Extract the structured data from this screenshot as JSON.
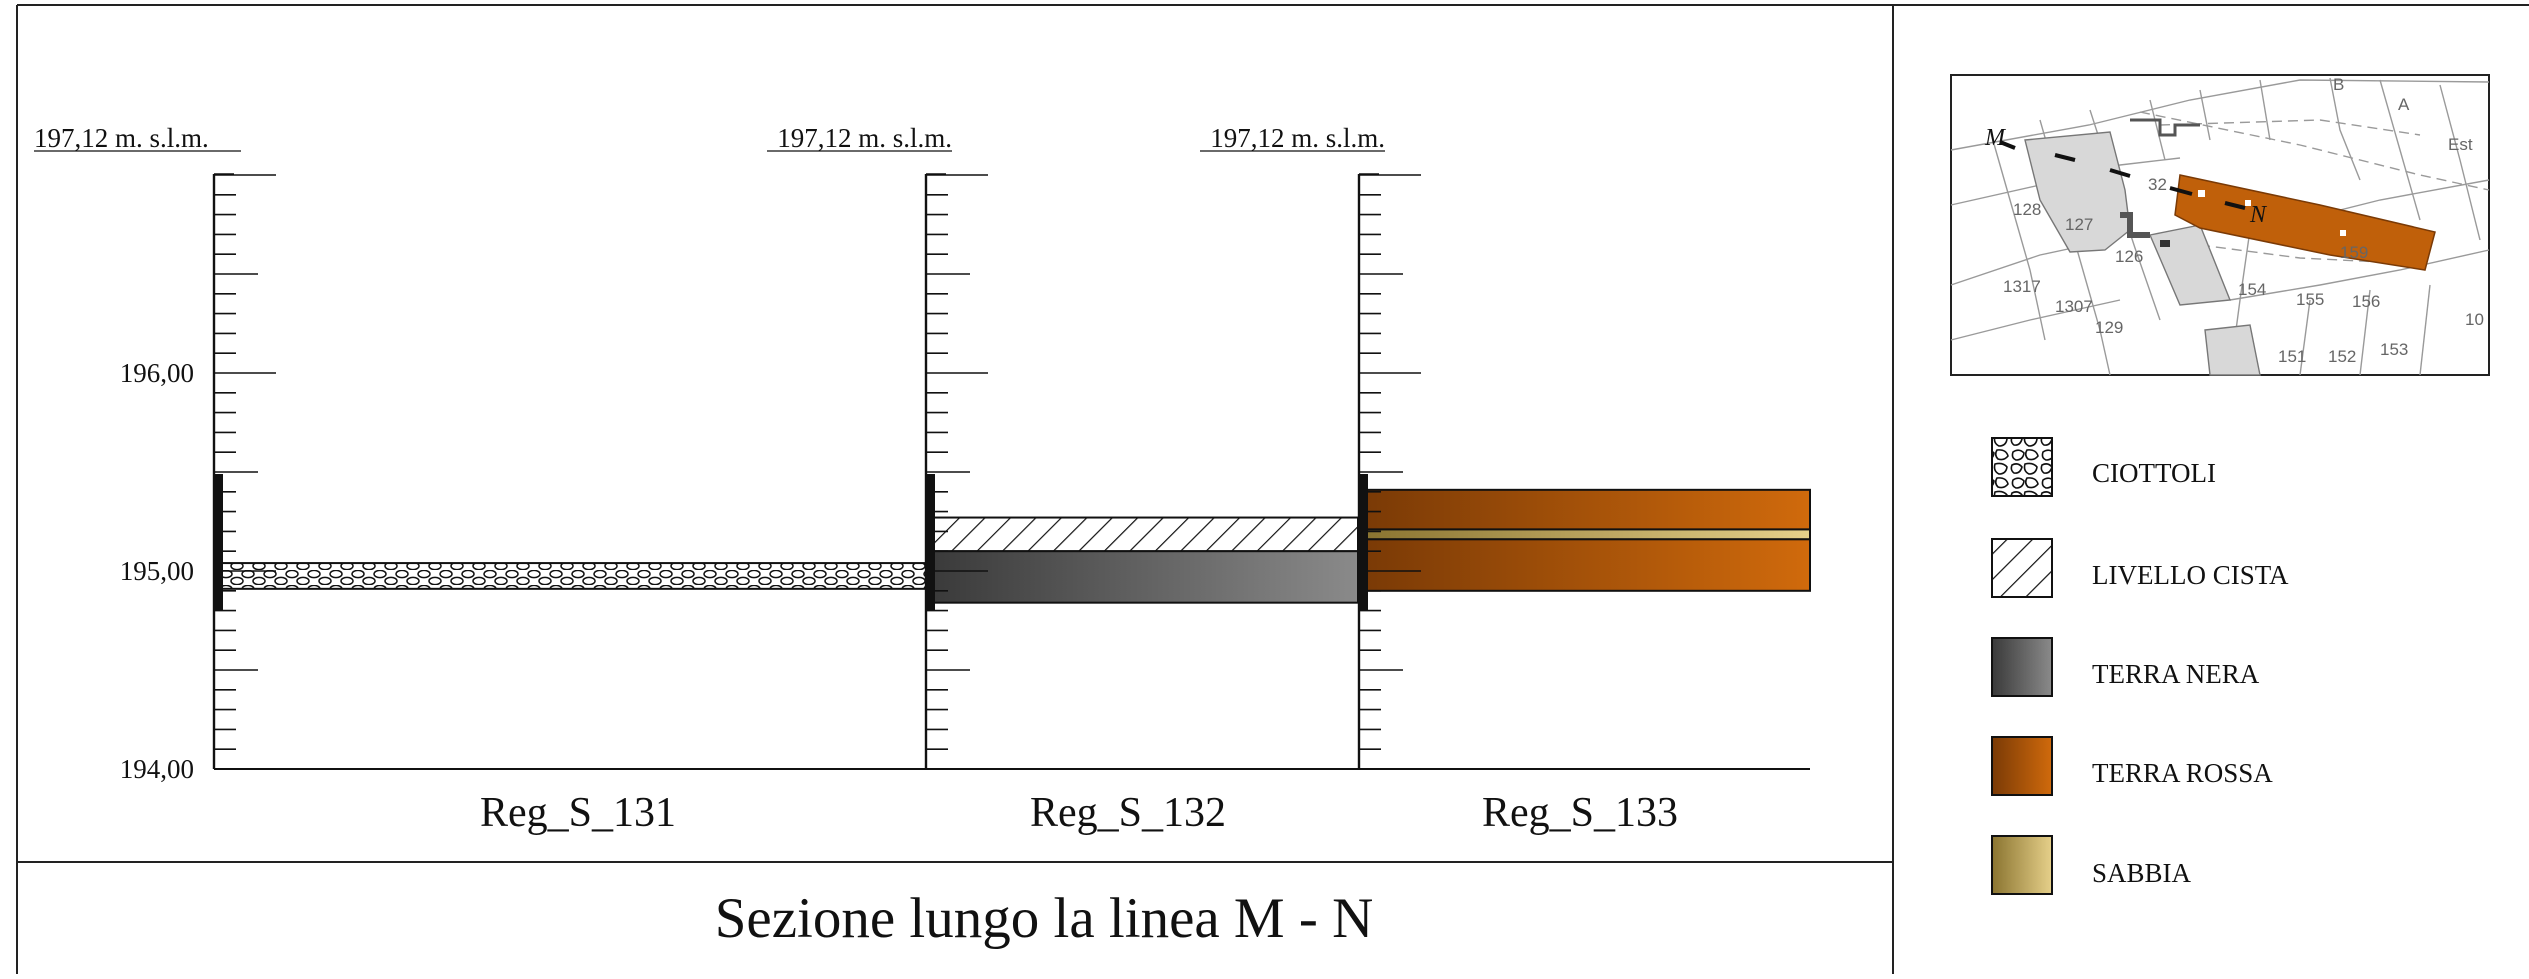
{
  "title": "Sezione lungo la linea M - N",
  "axis": {
    "min": 194.0,
    "max": 197.0,
    "major_ticks": [
      {
        "value": 194.0,
        "label": "194,00"
      },
      {
        "value": 195.0,
        "label": "195,00"
      },
      {
        "value": 196.0,
        "label": "196,00"
      }
    ]
  },
  "sections": [
    {
      "id": "Reg_S_131",
      "label": "Reg_S_131",
      "top_label": "197,12 m. s.l.m.",
      "layers": [
        {
          "material": "CIOTTOLI",
          "top": 195.04,
          "bottom": 194.91
        }
      ]
    },
    {
      "id": "Reg_S_132",
      "label": "Reg_S_132",
      "top_label": "197,12 m. s.l.m.",
      "layers": [
        {
          "material": "LIVELLO CISTA",
          "top": 195.27,
          "bottom": 195.1
        },
        {
          "material": "TERRA NERA",
          "top": 195.1,
          "bottom": 194.84
        }
      ]
    },
    {
      "id": "Reg_S_133",
      "label": "Reg_S_133",
      "top_label": "197,12 m. s.l.m.",
      "layers": [
        {
          "material": "TERRA ROSSA",
          "top": 195.41,
          "bottom": 195.21
        },
        {
          "material": "SABBIA",
          "top": 195.21,
          "bottom": 195.16
        },
        {
          "material": "TERRA ROSSA",
          "top": 195.16,
          "bottom": 194.9
        }
      ]
    }
  ],
  "legend": [
    {
      "key": "ciottoli",
      "label": "CIOTTOLI"
    },
    {
      "key": "livello-cista",
      "label": "LIVELLO CISTA"
    },
    {
      "key": "terra-nera",
      "label": "TERRA NERA"
    },
    {
      "key": "terra-rossa",
      "label": "TERRA ROSSA"
    },
    {
      "key": "sabbia",
      "label": "SABBIA"
    }
  ],
  "colors": {
    "terra_nera_dark": "#3a3a3a",
    "terra_nera_light": "#8a8a8a",
    "terra_rossa_dark": "#7a3a06",
    "terra_rossa_light": "#d06a0c",
    "sabbia_dark": "#8a7430",
    "sabbia_light": "#e6d08a"
  },
  "map": {
    "point_m": "M",
    "point_n": "N",
    "cell_labels": [
      "B",
      "A",
      "Est",
      "32",
      "128",
      "127",
      "126",
      "1317",
      "1307",
      "129",
      "154",
      "155",
      "156",
      "10",
      "151",
      "152",
      "153",
      "159"
    ]
  }
}
